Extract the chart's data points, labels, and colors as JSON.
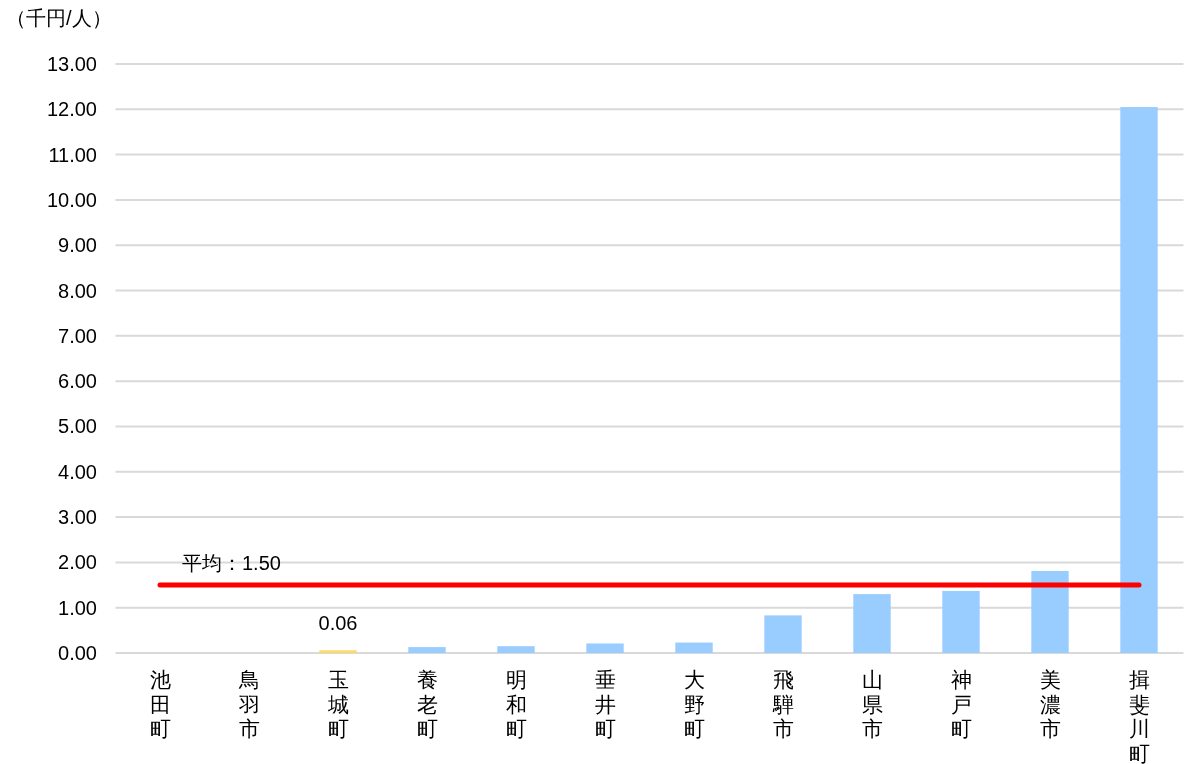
{
  "chart_data": {
    "type": "bar",
    "ylabel": "（千円/人）",
    "categories": [
      "池田町",
      "鳥羽市",
      "玉城町",
      "養老町",
      "明和町",
      "垂井町",
      "大野町",
      "飛騨市",
      "山県市",
      "神戸町",
      "美濃市",
      "揖斐川町"
    ],
    "values": [
      0,
      0,
      0.06,
      0.13,
      0.15,
      0.21,
      0.23,
      0.83,
      1.3,
      1.37,
      1.81,
      12.05
    ],
    "colors": [
      "#99ccff",
      "#99ccff",
      "#ffd966",
      "#99ccff",
      "#99ccff",
      "#99ccff",
      "#99ccff",
      "#99ccff",
      "#99ccff",
      "#99ccff",
      "#99ccff",
      "#99ccff"
    ],
    "value_labels": [
      null,
      null,
      "0.06",
      null,
      null,
      null,
      null,
      null,
      null,
      null,
      null,
      null
    ],
    "ylim": [
      0,
      13
    ],
    "yticks": [
      {
        "value": 0,
        "label": "0.00"
      },
      {
        "value": 1,
        "label": "1.00"
      },
      {
        "value": 2,
        "label": "2.00"
      },
      {
        "value": 3,
        "label": "3.00"
      },
      {
        "value": 4,
        "label": "4.00"
      },
      {
        "value": 5,
        "label": "5.00"
      },
      {
        "value": 6,
        "label": "6.00"
      },
      {
        "value": 7,
        "label": "7.00"
      },
      {
        "value": 8,
        "label": "8.00"
      },
      {
        "value": 9,
        "label": "9.00"
      },
      {
        "value": 10,
        "label": "10.00"
      },
      {
        "value": 11,
        "label": "11.00"
      },
      {
        "value": 12,
        "label": "12.00"
      },
      {
        "value": 13,
        "label": "13.00"
      }
    ],
    "grid": "y",
    "ref_lines": [
      {
        "axis": "y",
        "value": 1.5,
        "label": "平均：1.50",
        "color": "#ff0000"
      }
    ]
  }
}
